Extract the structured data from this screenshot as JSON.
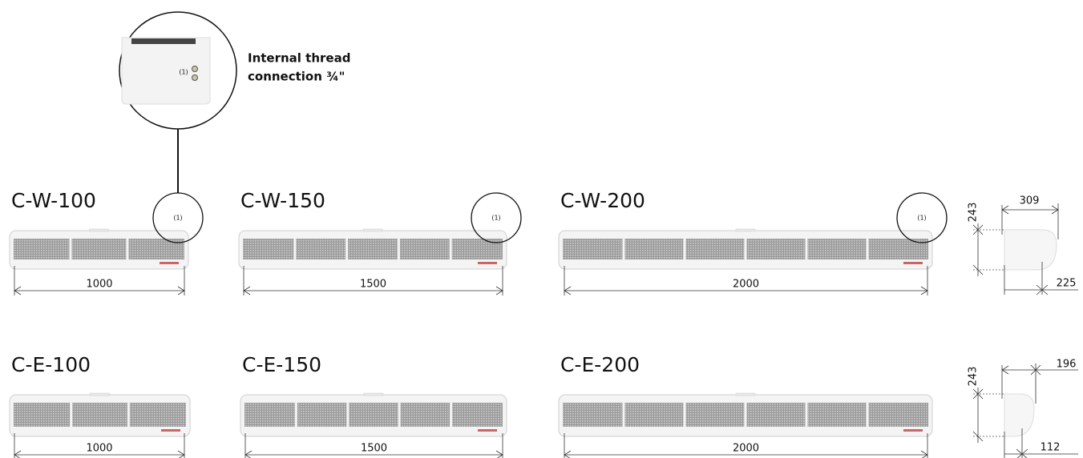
{
  "callout": {
    "label": "(1)",
    "lines": [
      "Internal thread",
      "connection ¾\""
    ]
  },
  "rows": [
    {
      "models": [
        {
          "name": "C-W-100",
          "length": 1000,
          "marker": "(1)"
        },
        {
          "name": "C-W-150",
          "length": 1500,
          "marker": "(1)"
        },
        {
          "name": "C-W-200",
          "length": 2000,
          "marker": "(1)"
        }
      ],
      "side": {
        "height": 243,
        "depth": 309,
        "offset": 225
      }
    },
    {
      "models": [
        {
          "name": "C-E-100",
          "length": 1000
        },
        {
          "name": "C-E-150",
          "length": 1500
        },
        {
          "name": "C-E-200",
          "length": 2000
        }
      ],
      "side": {
        "height": 243,
        "depth": 196,
        "offset": 112
      }
    }
  ]
}
